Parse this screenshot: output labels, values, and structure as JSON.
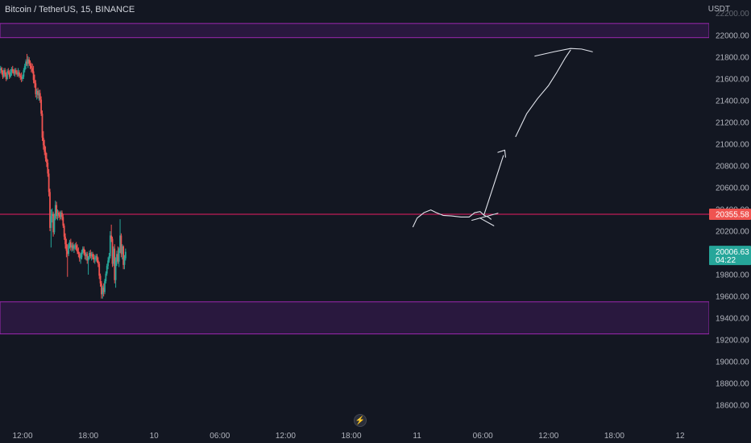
{
  "header": {
    "symbol": "Bitcoin / TetherUS, 15, BINANCE",
    "currency": "USDT"
  },
  "icons": {
    "replay": "lightning-icon"
  },
  "colors": {
    "background": "#131722",
    "up": "#26a69a",
    "down": "#ef5350",
    "zone": "#7b1fa2",
    "line": "#e91e63",
    "text": "#b2b5be"
  },
  "chart_data": {
    "type": "candlestick",
    "ylim": [
      18450,
      22450
    ],
    "y_ticks": [
      22200,
      22000,
      21800,
      21600,
      21400,
      21200,
      21000,
      20800,
      20600,
      20400,
      20200,
      20000,
      19800,
      19600,
      19400,
      19200,
      19000,
      18800,
      18600
    ],
    "y_tick_labels": [
      "22200.00",
      "22000.00",
      "21800.00",
      "21600.00",
      "21400.00",
      "21200.00",
      "21000.00",
      "20800.00",
      "20600.00",
      "20400.00",
      "20200.00",
      "20000.00",
      "19800.00",
      "19600.00",
      "19400.00",
      "19200.00",
      "19000.00",
      "18800.00",
      "18600.00"
    ],
    "x_ticks": [
      {
        "label": "12:00",
        "x": 0
      },
      {
        "label": "18:00",
        "x": 24
      },
      {
        "label": "10",
        "x": 48
      },
      {
        "label": "06:00",
        "x": 72
      },
      {
        "label": "12:00",
        "x": 96
      },
      {
        "label": "18:00",
        "x": 120
      },
      {
        "label": "11",
        "x": 144
      },
      {
        "label": "06:00",
        "x": 168
      },
      {
        "label": "12:00",
        "x": 192
      },
      {
        "label": "18:00",
        "x": 216
      },
      {
        "label": "12",
        "x": 240
      }
    ],
    "resistance_zone": [
      21980,
      22110
    ],
    "support_zone": [
      19255,
      19550
    ],
    "level_line": 20355.58,
    "price_labels": [
      {
        "value": "20355.58",
        "y": 20355.58,
        "color": "#ef5350"
      },
      {
        "value": "20006.63",
        "time": "04:22",
        "y": 20006.63,
        "color": "#26a69a"
      }
    ],
    "ohlc": [
      [
        -8.0,
        21680,
        21720,
        21650,
        21700
      ],
      [
        -7.6,
        21700,
        21710,
        21640,
        21660
      ],
      [
        -7.2,
        21660,
        21680,
        21600,
        21620
      ],
      [
        -6.8,
        21620,
        21700,
        21610,
        21680
      ],
      [
        -6.4,
        21680,
        21700,
        21620,
        21640
      ],
      [
        -6.0,
        21640,
        21660,
        21580,
        21600
      ],
      [
        -5.6,
        21600,
        21690,
        21590,
        21670
      ],
      [
        -5.2,
        21670,
        21700,
        21640,
        21660
      ],
      [
        -4.8,
        21660,
        21680,
        21600,
        21620
      ],
      [
        -4.4,
        21620,
        21690,
        21610,
        21660
      ],
      [
        -4.0,
        21660,
        21710,
        21630,
        21690
      ],
      [
        -3.6,
        21690,
        21720,
        21650,
        21670
      ],
      [
        -3.2,
        21670,
        21690,
        21630,
        21650
      ],
      [
        -2.8,
        21650,
        21700,
        21620,
        21680
      ],
      [
        -2.4,
        21680,
        21700,
        21640,
        21660
      ],
      [
        -2.0,
        21660,
        21680,
        21620,
        21640
      ],
      [
        -1.6,
        21640,
        21700,
        21620,
        21660
      ],
      [
        -1.2,
        21660,
        21680,
        21610,
        21630
      ],
      [
        -0.8,
        21630,
        21650,
        21590,
        21620
      ],
      [
        -0.4,
        21620,
        21660,
        21570,
        21600
      ],
      [
        0.0,
        21600,
        21640,
        21580,
        21620
      ],
      [
        0.4,
        21620,
        21700,
        21600,
        21680
      ],
      [
        0.8,
        21680,
        21740,
        21660,
        21720
      ],
      [
        1.2,
        21720,
        21780,
        21690,
        21760
      ],
      [
        1.6,
        21760,
        21830,
        21720,
        21740
      ],
      [
        2.0,
        21740,
        21810,
        21700,
        21780
      ],
      [
        2.4,
        21780,
        21800,
        21720,
        21740
      ],
      [
        2.8,
        21740,
        21770,
        21690,
        21720
      ],
      [
        3.2,
        21720,
        21750,
        21660,
        21700
      ],
      [
        3.6,
        21700,
        21740,
        21650,
        21670
      ],
      [
        4.0,
        21670,
        21720,
        21560,
        21590
      ],
      [
        4.4,
        21590,
        21640,
        21520,
        21560
      ],
      [
        4.8,
        21560,
        21590,
        21430,
        21460
      ],
      [
        5.2,
        21460,
        21510,
        21410,
        21490
      ],
      [
        5.6,
        21490,
        21520,
        21420,
        21450
      ],
      [
        6.0,
        21450,
        21500,
        21400,
        21470
      ],
      [
        6.4,
        21470,
        21500,
        21380,
        21410
      ],
      [
        6.8,
        21410,
        21440,
        21260,
        21280
      ],
      [
        7.2,
        21280,
        21310,
        21030,
        21060
      ],
      [
        7.6,
        21060,
        21120,
        20950,
        20990
      ],
      [
        8.0,
        20990,
        21040,
        20900,
        20930
      ],
      [
        8.4,
        20930,
        20980,
        20840,
        20870
      ],
      [
        8.8,
        20870,
        20920,
        20790,
        20830
      ],
      [
        9.2,
        20830,
        20860,
        20700,
        20730
      ],
      [
        9.6,
        20730,
        20770,
        20520,
        20560
      ],
      [
        10.0,
        20560,
        20590,
        20200,
        20230
      ],
      [
        10.4,
        20230,
        20400,
        20050,
        20340
      ],
      [
        10.8,
        20340,
        20410,
        20280,
        20360
      ],
      [
        11.2,
        20360,
        20380,
        20150,
        20190
      ],
      [
        11.6,
        20190,
        20360,
        20170,
        20320
      ],
      [
        12.0,
        20320,
        20480,
        20300,
        20440
      ],
      [
        12.4,
        20440,
        20470,
        20310,
        20340
      ],
      [
        12.8,
        20340,
        20400,
        20300,
        20370
      ],
      [
        13.2,
        20370,
        20390,
        20320,
        20350
      ],
      [
        13.6,
        20350,
        20380,
        20300,
        20330
      ],
      [
        14.0,
        20330,
        20390,
        20310,
        20370
      ],
      [
        14.4,
        20370,
        20390,
        20300,
        20330
      ],
      [
        14.8,
        20330,
        20360,
        20230,
        20250
      ],
      [
        15.2,
        20250,
        20270,
        20120,
        20150
      ],
      [
        15.6,
        20150,
        20180,
        20040,
        20080
      ],
      [
        16.0,
        20080,
        20130,
        19960,
        20020
      ],
      [
        16.4,
        20020,
        20080,
        19780,
        19990
      ],
      [
        16.8,
        19990,
        20090,
        19970,
        20070
      ],
      [
        17.2,
        20070,
        20120,
        20040,
        20100
      ],
      [
        17.6,
        20100,
        20130,
        20020,
        20050
      ],
      [
        18.0,
        20050,
        20090,
        20010,
        20070
      ],
      [
        18.4,
        20070,
        20100,
        20020,
        20040
      ],
      [
        18.8,
        20040,
        20080,
        20000,
        20060
      ],
      [
        19.2,
        20060,
        20090,
        20030,
        20070
      ],
      [
        19.6,
        20070,
        20100,
        20020,
        20040
      ],
      [
        20.0,
        20040,
        20080,
        19990,
        20010
      ],
      [
        20.4,
        20010,
        20050,
        19960,
        19990
      ],
      [
        20.8,
        19990,
        20010,
        19920,
        19950
      ],
      [
        21.2,
        19950,
        20000,
        19900,
        19960
      ],
      [
        21.6,
        19960,
        20030,
        19940,
        20010
      ],
      [
        22.0,
        20010,
        20060,
        19990,
        20040
      ],
      [
        22.4,
        20040,
        20060,
        19980,
        20000
      ],
      [
        22.8,
        20000,
        20030,
        19940,
        19970
      ],
      [
        23.2,
        19970,
        20010,
        19930,
        19990
      ],
      [
        23.6,
        19990,
        20010,
        19900,
        19930
      ],
      [
        24.0,
        19930,
        19970,
        19800,
        19960
      ],
      [
        24.4,
        19960,
        20020,
        19940,
        20000
      ],
      [
        24.8,
        20000,
        20030,
        19950,
        19970
      ],
      [
        25.2,
        19970,
        20010,
        19930,
        19990
      ],
      [
        25.6,
        19990,
        20010,
        19940,
        19960
      ],
      [
        26.0,
        19960,
        19990,
        19910,
        19940
      ],
      [
        26.4,
        19940,
        19980,
        19900,
        19950
      ],
      [
        26.8,
        19950,
        19990,
        19920,
        19970
      ],
      [
        27.2,
        19970,
        19990,
        19910,
        19930
      ],
      [
        27.6,
        19930,
        19960,
        19870,
        19900
      ],
      [
        28.0,
        19900,
        19920,
        19760,
        19790
      ],
      [
        28.4,
        19790,
        19810,
        19690,
        19720
      ],
      [
        28.8,
        19720,
        19740,
        19580,
        19620
      ],
      [
        29.2,
        19620,
        19700,
        19580,
        19680
      ],
      [
        29.6,
        19680,
        19720,
        19600,
        19640
      ],
      [
        30.0,
        19640,
        19760,
        19620,
        19740
      ],
      [
        30.4,
        19740,
        19830,
        19720,
        19810
      ],
      [
        30.8,
        19810,
        19900,
        19790,
        19880
      ],
      [
        31.2,
        19880,
        19960,
        19850,
        19930
      ],
      [
        31.6,
        19930,
        20000,
        19910,
        19970
      ],
      [
        32.0,
        19970,
        20200,
        19950,
        20160
      ],
      [
        32.4,
        20160,
        20260,
        20100,
        20130
      ],
      [
        32.8,
        20130,
        20150,
        19870,
        19900
      ],
      [
        33.2,
        19900,
        20060,
        19880,
        20040
      ],
      [
        33.6,
        20040,
        20080,
        19720,
        19750
      ],
      [
        34.0,
        19750,
        19960,
        19680,
        19930
      ],
      [
        34.4,
        19930,
        20020,
        19880,
        19990
      ],
      [
        34.8,
        19990,
        20060,
        19900,
        19920
      ],
      [
        35.2,
        19920,
        20050,
        19870,
        20040
      ],
      [
        35.6,
        20040,
        20310,
        20000,
        20160
      ],
      [
        36.0,
        20160,
        20180,
        19960,
        19990
      ],
      [
        36.4,
        19990,
        20080,
        19940,
        20060
      ],
      [
        36.8,
        20060,
        20070,
        19850,
        19890
      ],
      [
        37.2,
        19890,
        19980,
        19850,
        19950
      ],
      [
        37.6,
        19950,
        20040,
        19930,
        20010
      ]
    ],
    "drawings": [
      {
        "type": "polyline",
        "points": [
          [
            142.5,
            20240
          ],
          [
            144,
            20320
          ],
          [
            146.5,
            20370
          ],
          [
            149,
            20395
          ],
          [
            151,
            20370
          ],
          [
            153.5,
            20345
          ],
          [
            156.5,
            20340
          ],
          [
            160,
            20330
          ],
          [
            163,
            20330
          ],
          [
            165,
            20370
          ],
          [
            167,
            20380
          ],
          [
            168.5,
            20345
          ],
          [
            170,
            20330
          ],
          [
            171,
            20310
          ]
        ]
      },
      {
        "type": "line",
        "points": [
          [
            164,
            20300
          ],
          [
            173.5,
            20365
          ]
        ]
      },
      {
        "type": "line",
        "points": [
          [
            167,
            20320
          ],
          [
            172,
            20250
          ]
        ]
      },
      {
        "type": "line",
        "points": [
          [
            168.5,
            20355
          ],
          [
            175.5,
            20895
          ]
        ]
      },
      {
        "type": "line",
        "points": [
          [
            173.5,
            20925
          ],
          [
            176,
            20945
          ]
        ]
      },
      {
        "type": "line",
        "points": [
          [
            176,
            20945
          ],
          [
            176.3,
            20880
          ]
        ]
      },
      {
        "type": "polyline",
        "points": [
          [
            180,
            21070
          ],
          [
            184,
            21280
          ],
          [
            188,
            21420
          ],
          [
            192,
            21540
          ],
          [
            195,
            21660
          ],
          [
            198,
            21790
          ],
          [
            200,
            21865
          ]
        ]
      },
      {
        "type": "polyline",
        "points": [
          [
            187,
            21810
          ],
          [
            194,
            21850
          ],
          [
            200,
            21880
          ],
          [
            204,
            21875
          ],
          [
            208,
            21850
          ]
        ]
      }
    ]
  }
}
